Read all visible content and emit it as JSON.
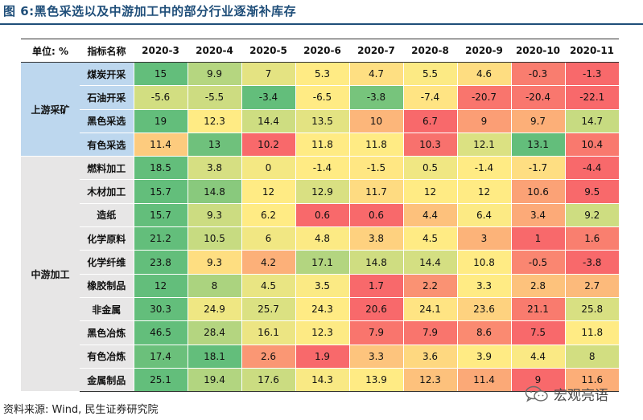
{
  "title": "图 6:黑色采选以及中游加工中的部分行业逐渐补库存",
  "source": "资料来源: Wind, 民生证券研究院",
  "watermark": "宏观亮语",
  "chart_data": {
    "type": "table",
    "title": "图 6:黑色采选以及中游加工中的部分行业逐渐补库存",
    "header": {
      "unit": "单位: %",
      "indicator": "指标名称",
      "columns": [
        "2020-3",
        "2020-4",
        "2020-5",
        "2020-6",
        "2020-7",
        "2020-8",
        "2020-9",
        "2020-10",
        "2020-11"
      ]
    },
    "groups": [
      {
        "name": "上游采矿",
        "rows": [
          {
            "name": "煤炭开采",
            "values": [
              "15",
              "9.9",
              "7",
              "5.3",
              "4.7",
              "5.5",
              "4.6",
              "-0.3",
              "-1.3"
            ]
          },
          {
            "name": "石油开采",
            "values": [
              "-5.6",
              "-5.5",
              "-3.4",
              "-6.5",
              "-3.8",
              "-7.4",
              "-20.7",
              "-20.4",
              "-22.1"
            ]
          },
          {
            "name": "黑色采选",
            "values": [
              "19",
              "12.3",
              "14.4",
              "13.5",
              "10",
              "6.7",
              "9",
              "9.7",
              "14.7"
            ]
          },
          {
            "name": "有色采选",
            "values": [
              "11.4",
              "13",
              "10.2",
              "11.8",
              "11.8",
              "10.3",
              "12.1",
              "13.1",
              "10.4"
            ]
          }
        ]
      },
      {
        "name": "中游加工",
        "rows": [
          {
            "name": "燃料加工",
            "values": [
              "18.5",
              "3.8",
              "0",
              "-1.4",
              "-1.5",
              "0.5",
              "-1.4",
              "-1.7",
              "-4.4"
            ]
          },
          {
            "name": "木材加工",
            "values": [
              "15.7",
              "14.8",
              "12",
              "12.9",
              "11.7",
              "12",
              "12",
              "10.6",
              "9.5"
            ]
          },
          {
            "name": "造纸",
            "values": [
              "15.7",
              "9.3",
              "6.2",
              "0.6",
              "0.6",
              "4.4",
              "6.4",
              "3.4",
              "9.2"
            ]
          },
          {
            "name": "化学原料",
            "values": [
              "21.2",
              "10.5",
              "6",
              "4.8",
              "3.8",
              "4.5",
              "3",
              "1",
              "1.6"
            ]
          },
          {
            "name": "化学纤维",
            "values": [
              "23.8",
              "9.3",
              "4.2",
              "17.1",
              "14.8",
              "14.4",
              "10.8",
              "-0.5",
              "-3.8"
            ]
          },
          {
            "name": "橡胶制品",
            "values": [
              "12",
              "8",
              "4.5",
              "3.5",
              "1.7",
              "2.2",
              "3.3",
              "2.8",
              "2.7"
            ]
          },
          {
            "name": "非金属",
            "values": [
              "30.3",
              "24.9",
              "25.7",
              "24.3",
              "20.6",
              "24.1",
              "23.6",
              "21.1",
              "25.8"
            ]
          },
          {
            "name": "黑色冶炼",
            "values": [
              "46.5",
              "28.4",
              "16.1",
              "12.3",
              "7.9",
              "7.9",
              "8.6",
              "7.5",
              "11.8"
            ]
          },
          {
            "name": "有色冶炼",
            "values": [
              "17.4",
              "18.1",
              "2.6",
              "1.9",
              "3.3",
              "3.6",
              "3.9",
              "4.4",
              "8"
            ]
          },
          {
            "name": "金属制品",
            "values": [
              "25.1",
              "19.4",
              "17.6",
              "14.3",
              "13.9",
              "12.3",
              "11.4",
              "9",
              "11.6"
            ]
          }
        ]
      }
    ],
    "colors": {
      "high": "#63be7b",
      "mid": "#ffeb84",
      "low": "#f8696b",
      "upstream_label_bg": "#bdd7ee",
      "midstream_label_bg": "#e7e6e6"
    }
  }
}
